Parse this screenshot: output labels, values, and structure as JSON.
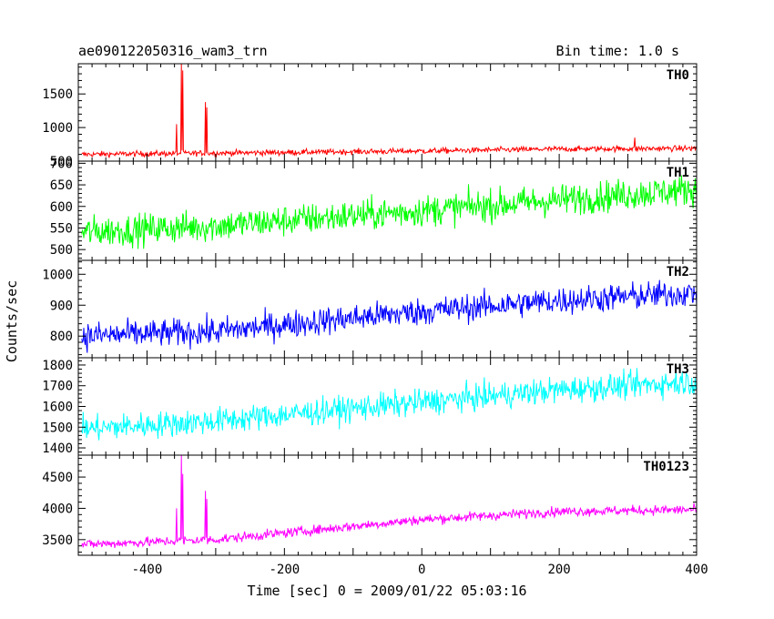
{
  "header": {
    "title": "ae090122050316_wam3_trn",
    "bin_time": "Bin time: 1.0 s"
  },
  "axis": {
    "ylabel": "Counts/sec",
    "xlabel": "Time [sec] 0 = 2009/01/22 05:03:16"
  },
  "chart_data": {
    "type": "line",
    "x_range": [
      -500,
      400
    ],
    "bin_time_s": 1.0,
    "x_ticks": [
      -400,
      -200,
      0,
      200,
      400
    ],
    "panels": [
      {
        "name": "TH0",
        "color": "#ff0000",
        "ylim": [
          500,
          1950
        ],
        "y_ticks": [
          500,
          1000,
          1500
        ],
        "baseline": [
          [
            -500,
            600
          ],
          [
            -300,
            620
          ],
          [
            0,
            650
          ],
          [
            200,
            680
          ],
          [
            400,
            690
          ]
        ],
        "noise": 30,
        "spikes": [
          [
            -357,
            1050
          ],
          [
            -350,
            1950
          ],
          [
            -348,
            1850
          ],
          [
            -315,
            1380
          ],
          [
            -313,
            1300
          ],
          [
            310,
            850
          ]
        ]
      },
      {
        "name": "TH1",
        "color": "#00ff00",
        "ylim": [
          475,
          705
        ],
        "y_ticks": [
          500,
          550,
          600,
          650,
          700
        ],
        "baseline": [
          [
            -500,
            540
          ],
          [
            -300,
            555
          ],
          [
            0,
            590
          ],
          [
            200,
            615
          ],
          [
            400,
            640
          ]
        ],
        "noise": 26,
        "spikes": []
      },
      {
        "name": "TH2",
        "color": "#0000ff",
        "ylim": [
          730,
          1045
        ],
        "y_ticks": [
          800,
          900,
          1000
        ],
        "baseline": [
          [
            -500,
            800
          ],
          [
            -300,
            815
          ],
          [
            0,
            880
          ],
          [
            200,
            915
          ],
          [
            400,
            940
          ]
        ],
        "noise": 32,
        "spikes": []
      },
      {
        "name": "TH3",
        "color": "#00ffff",
        "ylim": [
          1365,
          1835
        ],
        "y_ticks": [
          1400,
          1500,
          1600,
          1700,
          1800
        ],
        "baseline": [
          [
            -500,
            1490
          ],
          [
            -300,
            1530
          ],
          [
            0,
            1620
          ],
          [
            200,
            1680
          ],
          [
            400,
            1720
          ]
        ],
        "noise": 45,
        "spikes": []
      },
      {
        "name": "TH0123",
        "color": "#ff00ff",
        "ylim": [
          3250,
          4850
        ],
        "y_ticks": [
          3500,
          4000,
          4500
        ],
        "baseline": [
          [
            -500,
            3420
          ],
          [
            -300,
            3500
          ],
          [
            0,
            3820
          ],
          [
            200,
            3950
          ],
          [
            400,
            3980
          ]
        ],
        "noise": 55,
        "spikes": [
          [
            -357,
            4000
          ],
          [
            -350,
            4850
          ],
          [
            -348,
            4550
          ],
          [
            -315,
            4280
          ],
          [
            -313,
            4150
          ]
        ]
      }
    ]
  }
}
